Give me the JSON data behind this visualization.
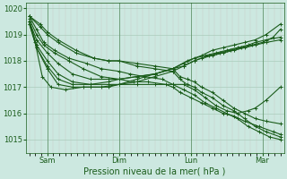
{
  "background_color": "#cce8e0",
  "grid_major_color": "#aaccbb",
  "grid_minor_color": "#c8b8b8",
  "line_color": "#1a5c1a",
  "marker": "+",
  "markersize": 3,
  "linewidth": 0.8,
  "xlabel": "Pression niveau de la mer( hPa )",
  "xlabel_fontsize": 7,
  "xlabel_color": "#1a5c1a",
  "tick_color": "#1a5c1a",
  "tick_fontsize": 6,
  "ylim": [
    1014.5,
    1020.2
  ],
  "yticks": [
    1015,
    1016,
    1017,
    1018,
    1019,
    1020
  ],
  "xtick_labels": [
    "Sam",
    "Dim",
    "Lun",
    "Mar"
  ],
  "xtick_positions": [
    0.25,
    1.25,
    2.25,
    3.25
  ],
  "xlim": [
    -0.05,
    3.55
  ],
  "series": [
    {
      "x": [
        0.0,
        0.15,
        0.25,
        0.4,
        0.65,
        0.9,
        1.1,
        1.25,
        1.5,
        1.75,
        2.0,
        2.1,
        2.2,
        2.3,
        2.4,
        2.55,
        2.7,
        2.85,
        3.0,
        3.15,
        3.3,
        3.5
      ],
      "y": [
        1019.7,
        1019.4,
        1019.1,
        1018.8,
        1018.4,
        1018.1,
        1018.0,
        1018.0,
        1017.9,
        1017.8,
        1017.7,
        1017.4,
        1017.3,
        1017.2,
        1017.0,
        1016.8,
        1016.5,
        1016.2,
        1016.0,
        1015.8,
        1015.7,
        1015.6
      ]
    },
    {
      "x": [
        0.0,
        0.15,
        0.25,
        0.4,
        0.65,
        0.9,
        1.1,
        1.25,
        1.5,
        1.75,
        2.0,
        2.1,
        2.2,
        2.3,
        2.4,
        2.55,
        2.7,
        2.85,
        3.0,
        3.15,
        3.3,
        3.5
      ],
      "y": [
        1019.7,
        1019.3,
        1019.0,
        1018.7,
        1018.3,
        1018.1,
        1018.0,
        1018.0,
        1017.8,
        1017.7,
        1017.6,
        1017.3,
        1017.1,
        1017.0,
        1016.8,
        1016.6,
        1016.3,
        1016.1,
        1015.8,
        1015.5,
        1015.3,
        1015.1
      ]
    },
    {
      "x": [
        0.0,
        0.1,
        0.2,
        0.35,
        0.55,
        0.8,
        1.0,
        1.25,
        1.4,
        1.6,
        1.85,
        2.0,
        2.15,
        2.3,
        2.45,
        2.6,
        2.75,
        2.9,
        3.05,
        3.2,
        3.35,
        3.5
      ],
      "y": [
        1019.7,
        1019.2,
        1018.7,
        1018.4,
        1018.1,
        1017.9,
        1017.7,
        1017.6,
        1017.5,
        1017.4,
        1017.3,
        1017.1,
        1016.9,
        1016.7,
        1016.4,
        1016.2,
        1016.0,
        1015.8,
        1015.5,
        1015.3,
        1015.1,
        1015.0
      ]
    },
    {
      "x": [
        0.0,
        0.1,
        0.2,
        0.35,
        0.55,
        0.75,
        1.0,
        1.25,
        1.45,
        1.65,
        1.9,
        2.0,
        2.1,
        2.25,
        2.4,
        2.55,
        2.7,
        2.85,
        3.0,
        3.2,
        3.4,
        3.5
      ],
      "y": [
        1019.6,
        1019.0,
        1018.6,
        1018.3,
        1018.0,
        1017.7,
        1017.4,
        1017.3,
        1017.2,
        1017.2,
        1017.1,
        1017.0,
        1016.8,
        1016.6,
        1016.4,
        1016.2,
        1016.0,
        1015.9,
        1015.7,
        1015.5,
        1015.3,
        1015.2
      ]
    },
    {
      "x": [
        0.0,
        0.1,
        0.25,
        0.4,
        0.6,
        0.85,
        1.1,
        1.25,
        1.5,
        1.75,
        2.0,
        2.15,
        2.3,
        2.45,
        2.6,
        2.75,
        2.9,
        3.05,
        3.15,
        3.3,
        3.5
      ],
      "y": [
        1019.5,
        1018.5,
        1017.8,
        1017.3,
        1017.1,
        1017.1,
        1017.1,
        1017.1,
        1017.1,
        1017.1,
        1017.1,
        1017.1,
        1016.9,
        1016.6,
        1016.3,
        1016.1,
        1016.0,
        1016.1,
        1016.2,
        1016.5,
        1017.0
      ]
    },
    {
      "x": [
        0.0,
        0.1,
        0.25,
        0.4,
        0.6,
        0.85,
        1.1,
        1.25,
        1.5,
        1.75,
        2.0,
        2.15,
        2.3,
        2.4,
        2.55,
        2.7,
        2.85,
        3.0,
        3.15,
        3.3,
        3.5
      ],
      "y": [
        1019.5,
        1018.6,
        1018.0,
        1017.5,
        1017.2,
        1017.1,
        1017.2,
        1017.3,
        1017.4,
        1017.5,
        1017.7,
        1017.8,
        1018.0,
        1018.1,
        1018.2,
        1018.3,
        1018.4,
        1018.5,
        1018.6,
        1018.7,
        1018.8
      ]
    },
    {
      "x": [
        0.0,
        0.1,
        0.25,
        0.4,
        0.6,
        0.85,
        1.1,
        1.25,
        1.5,
        1.75,
        2.0,
        2.15,
        2.3,
        2.45,
        2.6,
        2.75,
        2.9,
        3.05,
        3.15,
        3.3,
        3.5
      ],
      "y": [
        1019.5,
        1018.8,
        1018.3,
        1017.9,
        1017.5,
        1017.3,
        1017.3,
        1017.3,
        1017.4,
        1017.5,
        1017.7,
        1017.9,
        1018.1,
        1018.2,
        1018.3,
        1018.4,
        1018.5,
        1018.6,
        1018.7,
        1018.8,
        1018.9
      ]
    },
    {
      "x": [
        0.0,
        0.1,
        0.25,
        0.4,
        0.6,
        0.85,
        1.1,
        1.25,
        1.5,
        1.75,
        2.0,
        2.15,
        2.3,
        2.5,
        2.65,
        2.8,
        2.95,
        3.1,
        3.25,
        3.4,
        3.5
      ],
      "y": [
        1019.4,
        1018.5,
        1017.7,
        1017.1,
        1017.0,
        1017.0,
        1017.0,
        1017.1,
        1017.2,
        1017.4,
        1017.6,
        1017.8,
        1018.0,
        1018.2,
        1018.3,
        1018.4,
        1018.5,
        1018.6,
        1018.7,
        1018.9,
        1019.2
      ]
    },
    {
      "x": [
        0.0,
        0.08,
        0.18,
        0.3,
        0.5,
        0.75,
        1.0,
        1.25,
        1.5,
        1.75,
        2.0,
        2.2,
        2.4,
        2.55,
        2.7,
        2.85,
        3.0,
        3.15,
        3.3,
        3.5
      ],
      "y": [
        1019.4,
        1018.7,
        1017.4,
        1017.0,
        1016.9,
        1017.0,
        1017.0,
        1017.1,
        1017.3,
        1017.5,
        1017.7,
        1018.0,
        1018.2,
        1018.4,
        1018.5,
        1018.6,
        1018.7,
        1018.8,
        1019.0,
        1019.4
      ]
    }
  ],
  "vlines": [
    0.25,
    1.25,
    2.25,
    3.25
  ]
}
